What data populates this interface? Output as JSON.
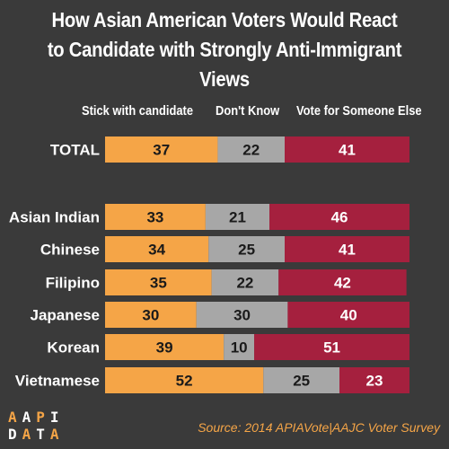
{
  "colors": {
    "background": "#3a3a3a",
    "stick": "#f5a547",
    "dont_know": "#a7a7a7",
    "someone_else": "#a5203e",
    "accent": "#f5a547"
  },
  "chart_data": {
    "type": "bar",
    "stacked": true,
    "orientation": "horizontal",
    "title": "How Asian American Voters Would React to Candidate with Strongly Anti-Immigrant Views",
    "title_lines": [
      "How Asian American Voters Would React",
      "to Candidate with Strongly Anti-Immigrant Views"
    ],
    "categories": [
      "TOTAL",
      "Asian Indian",
      "Chinese",
      "Filipino",
      "Japanese",
      "Korean",
      "Vietnamese"
    ],
    "series": [
      {
        "name": "Stick with candidate",
        "values": [
          37,
          33,
          34,
          35,
          30,
          39,
          52
        ]
      },
      {
        "name": "Don't Know",
        "values": [
          22,
          21,
          25,
          22,
          30,
          10,
          25
        ]
      },
      {
        "name": "Vote for Someone Else",
        "values": [
          41,
          46,
          41,
          42,
          40,
          51,
          23
        ]
      }
    ],
    "xlim": [
      0,
      100
    ],
    "grid": false,
    "legend": "top"
  },
  "footer": {
    "logo_line1": "AAPI",
    "logo_line2": "DATA",
    "source": "Source: 2014 APIAVote|AAJC Voter Survey"
  }
}
